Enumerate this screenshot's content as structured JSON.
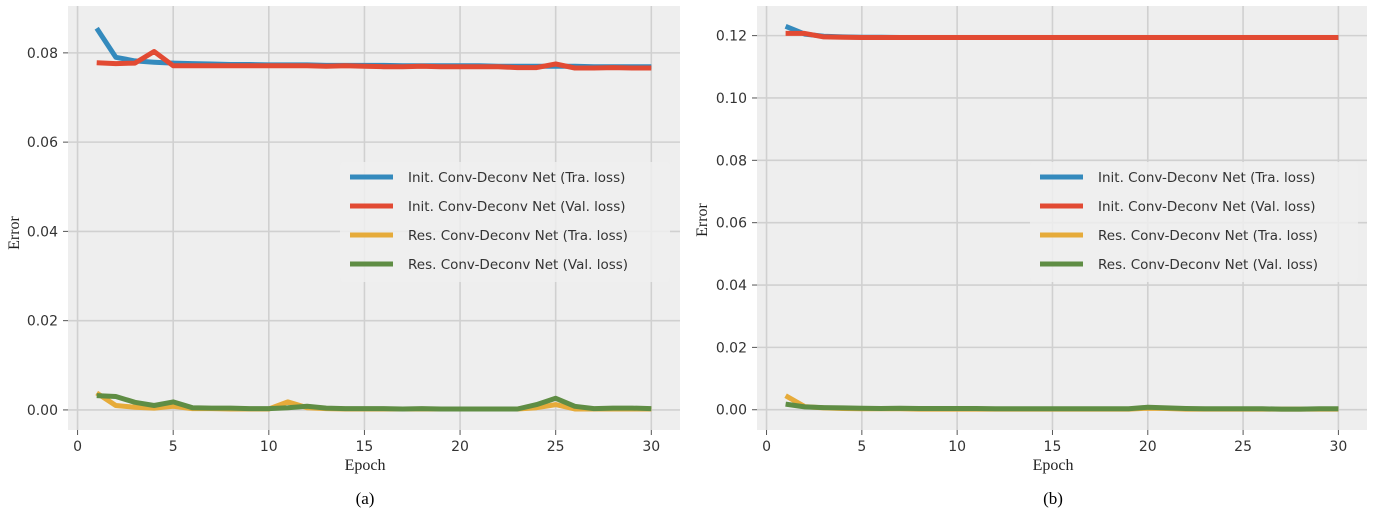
{
  "chart_data": [
    {
      "type": "line",
      "caption": "(a)",
      "xlabel": "Epoch",
      "ylabel": "Error",
      "xlim": [
        -0.5,
        31.5
      ],
      "ylim": [
        -0.0045,
        0.0905
      ],
      "xticks": [
        0,
        5,
        10,
        15,
        20,
        25,
        30
      ],
      "xtick_labels": [
        "0",
        "5",
        "10",
        "15",
        "20",
        "25",
        "30"
      ],
      "yticks": [
        0.0,
        0.02,
        0.04,
        0.06,
        0.08
      ],
      "ytick_labels": [
        "0.00",
        "0.02",
        "0.04",
        "0.06",
        "0.08"
      ],
      "grid": true,
      "legend_position": "center-right",
      "series": [
        {
          "name": "Init. Conv-Deconv Net (Tra. loss)",
          "color": "#348ABD",
          "x": [
            1,
            2,
            3,
            4,
            5,
            6,
            7,
            8,
            9,
            10,
            11,
            12,
            13,
            14,
            15,
            16,
            17,
            18,
            19,
            20,
            21,
            22,
            23,
            24,
            25,
            26,
            27,
            28,
            29,
            30
          ],
          "y": [
            0.0855,
            0.079,
            0.0782,
            0.0779,
            0.0777,
            0.0776,
            0.0775,
            0.0774,
            0.0774,
            0.0773,
            0.0773,
            0.0773,
            0.0772,
            0.0772,
            0.0772,
            0.0772,
            0.0771,
            0.0771,
            0.0771,
            0.0771,
            0.0771,
            0.077,
            0.077,
            0.077,
            0.077,
            0.077,
            0.0769,
            0.0769,
            0.0769,
            0.0769
          ]
        },
        {
          "name": "Init. Conv-Deconv Net (Val. loss)",
          "color": "#E24A33",
          "x": [
            1,
            2,
            3,
            4,
            5,
            6,
            7,
            8,
            9,
            10,
            11,
            12,
            13,
            14,
            15,
            16,
            17,
            18,
            19,
            20,
            21,
            22,
            23,
            24,
            25,
            26,
            27,
            28,
            29,
            30
          ],
          "y": [
            0.0778,
            0.0776,
            0.0777,
            0.0803,
            0.0771,
            0.0771,
            0.0771,
            0.0771,
            0.0771,
            0.0771,
            0.0771,
            0.0771,
            0.077,
            0.0771,
            0.077,
            0.0769,
            0.0769,
            0.077,
            0.0769,
            0.0769,
            0.0769,
            0.0769,
            0.0767,
            0.0767,
            0.0775,
            0.0766,
            0.0766,
            0.0767,
            0.0766,
            0.0766
          ]
        },
        {
          "name": "Res. Conv-Deconv Net (Tra. loss)",
          "color": "#E6AB3A",
          "x": [
            1,
            2,
            3,
            4,
            5,
            6,
            7,
            8,
            9,
            10,
            11,
            12,
            13,
            14,
            15,
            16,
            17,
            18,
            19,
            20,
            21,
            22,
            23,
            24,
            25,
            26,
            27,
            28,
            29,
            30
          ],
          "y": [
            0.0038,
            0.001,
            0.0006,
            0.0004,
            0.0008,
            0.0003,
            0.0003,
            0.0002,
            0.0002,
            0.0002,
            0.0018,
            0.0005,
            0.0003,
            0.0002,
            0.0002,
            0.0002,
            0.0002,
            0.0002,
            0.0002,
            0.0002,
            0.0002,
            0.0002,
            0.0002,
            0.0005,
            0.0012,
            0.0002,
            0.0002,
            0.0002,
            0.0002,
            0.0002
          ]
        },
        {
          "name": "Res. Conv-Deconv Net (Val. loss)",
          "color": "#5F8D44",
          "x": [
            1,
            2,
            3,
            4,
            5,
            6,
            7,
            8,
            9,
            10,
            11,
            12,
            13,
            14,
            15,
            16,
            17,
            18,
            19,
            20,
            21,
            22,
            23,
            24,
            25,
            26,
            27,
            28,
            29,
            30
          ],
          "y": [
            0.0032,
            0.003,
            0.0017,
            0.001,
            0.0018,
            0.0005,
            0.0004,
            0.0004,
            0.0003,
            0.0003,
            0.0005,
            0.0008,
            0.0004,
            0.0003,
            0.0003,
            0.0003,
            0.0002,
            0.0003,
            0.0002,
            0.0002,
            0.0002,
            0.0002,
            0.0002,
            0.0012,
            0.0026,
            0.0008,
            0.0003,
            0.0004,
            0.0004,
            0.0003
          ]
        }
      ]
    },
    {
      "type": "line",
      "caption": "(b)",
      "xlabel": "Epoch",
      "ylabel": "Error",
      "xlim": [
        -0.5,
        31.5
      ],
      "ylim": [
        -0.0065,
        0.1295
      ],
      "xticks": [
        0,
        5,
        10,
        15,
        20,
        25,
        30
      ],
      "xtick_labels": [
        "0",
        "5",
        "10",
        "15",
        "20",
        "25",
        "30"
      ],
      "yticks": [
        0.0,
        0.02,
        0.04,
        0.06,
        0.08,
        0.1,
        0.12
      ],
      "ytick_labels": [
        "0.00",
        "0.02",
        "0.04",
        "0.06",
        "0.08",
        "0.10",
        "0.12"
      ],
      "grid": true,
      "legend_position": "center-right",
      "series": [
        {
          "name": "Init. Conv-Deconv Net (Tra. loss)",
          "color": "#348ABD",
          "x": [
            1,
            2,
            3,
            4,
            5,
            6,
            7,
            8,
            9,
            10,
            11,
            12,
            13,
            14,
            15,
            16,
            17,
            18,
            19,
            20,
            21,
            22,
            23,
            24,
            25,
            26,
            27,
            28,
            29,
            30
          ],
          "y": [
            0.123,
            0.1205,
            0.1198,
            0.1196,
            0.1195,
            0.1195,
            0.1194,
            0.1194,
            0.1194,
            0.1194,
            0.1194,
            0.1194,
            0.1194,
            0.1194,
            0.1194,
            0.1194,
            0.1194,
            0.1194,
            0.1194,
            0.1194,
            0.1194,
            0.1194,
            0.1194,
            0.1194,
            0.1194,
            0.1194,
            0.1194,
            0.1194,
            0.1194,
            0.1194
          ]
        },
        {
          "name": "Init. Conv-Deconv Net (Val. loss)",
          "color": "#E24A33",
          "x": [
            1,
            2,
            3,
            4,
            5,
            6,
            7,
            8,
            9,
            10,
            11,
            12,
            13,
            14,
            15,
            16,
            17,
            18,
            19,
            20,
            21,
            22,
            23,
            24,
            25,
            26,
            27,
            28,
            29,
            30
          ],
          "y": [
            0.1207,
            0.1207,
            0.1196,
            0.1195,
            0.1194,
            0.1194,
            0.1194,
            0.1194,
            0.1194,
            0.1194,
            0.1194,
            0.1194,
            0.1194,
            0.1194,
            0.1194,
            0.1194,
            0.1194,
            0.1194,
            0.1194,
            0.1194,
            0.1194,
            0.1194,
            0.1194,
            0.1194,
            0.1194,
            0.1194,
            0.1194,
            0.1194,
            0.1194,
            0.1194
          ]
        },
        {
          "name": "Res. Conv-Deconv Net (Tra. loss)",
          "color": "#E6AB3A",
          "x": [
            1,
            2,
            3,
            4,
            5,
            6,
            7,
            8,
            9,
            10,
            11,
            12,
            13,
            14,
            15,
            16,
            17,
            18,
            19,
            20,
            21,
            22,
            23,
            24,
            25,
            26,
            27,
            28,
            29,
            30
          ],
          "y": [
            0.0045,
            0.001,
            0.0006,
            0.0004,
            0.0003,
            0.0003,
            0.0003,
            0.0002,
            0.0002,
            0.0002,
            0.0002,
            0.0002,
            0.0002,
            0.0002,
            0.0002,
            0.0002,
            0.0002,
            0.0002,
            0.0002,
            0.0005,
            0.0004,
            0.0002,
            0.0002,
            0.0002,
            0.0002,
            0.0002,
            0.0002,
            0.0002,
            0.0002,
            0.0002
          ]
        },
        {
          "name": "Res. Conv-Deconv Net (Val. loss)",
          "color": "#5F8D44",
          "x": [
            1,
            2,
            3,
            4,
            5,
            6,
            7,
            8,
            9,
            10,
            11,
            12,
            13,
            14,
            15,
            16,
            17,
            18,
            19,
            20,
            21,
            22,
            23,
            24,
            25,
            26,
            27,
            28,
            29,
            30
          ],
          "y": [
            0.0018,
            0.0009,
            0.0007,
            0.0006,
            0.0005,
            0.0004,
            0.0005,
            0.0004,
            0.0004,
            0.0004,
            0.0004,
            0.0003,
            0.0003,
            0.0003,
            0.0003,
            0.0003,
            0.0003,
            0.0003,
            0.0003,
            0.0008,
            0.0006,
            0.0004,
            0.0003,
            0.0003,
            0.0003,
            0.0003,
            0.0002,
            0.0002,
            0.0003,
            0.0003
          ]
        }
      ]
    }
  ]
}
